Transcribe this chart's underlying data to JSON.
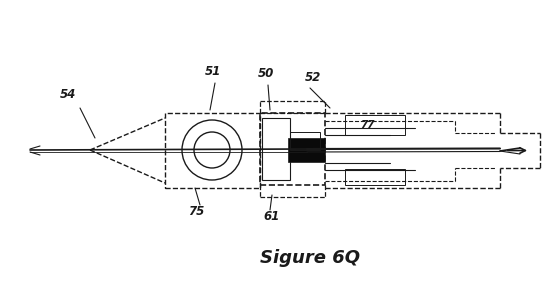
{
  "bg_color": "#ffffff",
  "line_color": "#1a1a1a",
  "figsize": [
    5.57,
    3.03
  ],
  "dpi": 100,
  "caption": "Sigure 6Q"
}
